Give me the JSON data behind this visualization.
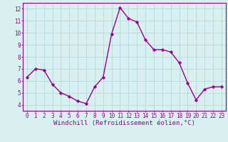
{
  "x": [
    0,
    1,
    2,
    3,
    4,
    5,
    6,
    7,
    8,
    9,
    10,
    11,
    12,
    13,
    14,
    15,
    16,
    17,
    18,
    19,
    20,
    21,
    22,
    23
  ],
  "y": [
    6.3,
    7.0,
    6.9,
    5.7,
    5.0,
    4.7,
    4.3,
    4.1,
    5.5,
    6.3,
    9.9,
    12.1,
    11.2,
    10.9,
    9.4,
    8.6,
    8.6,
    8.4,
    7.5,
    5.8,
    4.4,
    5.3,
    5.5,
    5.5
  ],
  "line_color": "#990099",
  "marker": "D",
  "marker_size": 2.2,
  "line_width": 1.0,
  "bg_color": "#d8f0f0",
  "grid_color": "#b8d8d8",
  "xlabel": "Windchill (Refroidissement éolien,°C)",
  "xlabel_color": "#990099",
  "tick_color": "#990099",
  "xlim": [
    -0.5,
    23.5
  ],
  "ylim": [
    3.5,
    12.5
  ],
  "yticks": [
    4,
    5,
    6,
    7,
    8,
    9,
    10,
    11,
    12
  ],
  "xticks": [
    0,
    1,
    2,
    3,
    4,
    5,
    6,
    7,
    8,
    9,
    10,
    11,
    12,
    13,
    14,
    15,
    16,
    17,
    18,
    19,
    20,
    21,
    22,
    23
  ],
  "font_size_ticks": 5.5,
  "font_size_xlabel": 6.5
}
